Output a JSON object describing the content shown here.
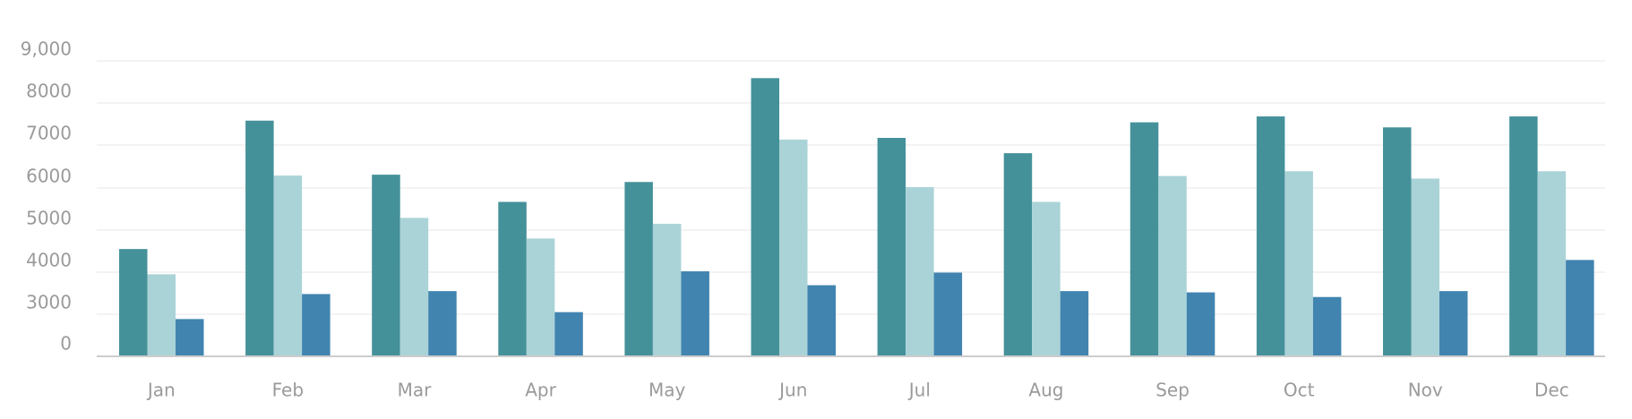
{
  "chart_data": {
    "type": "bar",
    "categories": [
      "Jan",
      "Feb",
      "Mar",
      "Apr",
      "May",
      "Jun",
      "Jul",
      "Aug",
      "Sep",
      "Oct",
      "Nov",
      "Dec"
    ],
    "y_ticks": [
      {
        "value": 0,
        "label": "0"
      },
      {
        "value": 3000,
        "label": "3000"
      },
      {
        "value": 4000,
        "label": "4000"
      },
      {
        "value": 5000,
        "label": "5000"
      },
      {
        "value": 6000,
        "label": "6000"
      },
      {
        "value": 7000,
        "label": "7000"
      },
      {
        "value": 8000,
        "label": "8000"
      },
      {
        "value": 9000,
        "label": "9,000"
      }
    ],
    "series": [
      {
        "color": "#45919a",
        "values": [
          4550,
          7580,
          6310,
          5670,
          6140,
          8590,
          7170,
          6810,
          7540,
          7680,
          7420,
          7680
        ]
      },
      {
        "color": "#aad3d7",
        "values": [
          3950,
          6290,
          5290,
          4800,
          5150,
          7130,
          6020,
          5670,
          6280,
          6390,
          6220,
          6390
        ]
      },
      {
        "color": "#4184b0",
        "values": [
          2650,
          3480,
          3550,
          3050,
          4020,
          3690,
          3990,
          3550,
          3520,
          3410,
          3550,
          4290
        ]
      }
    ],
    "title": "",
    "xlabel": "",
    "ylabel": "",
    "grid": true,
    "legend": "none",
    "colors": {
      "grid": "#efefef",
      "axis": "#cccccc",
      "tick_label": "#9a9a9a"
    }
  }
}
